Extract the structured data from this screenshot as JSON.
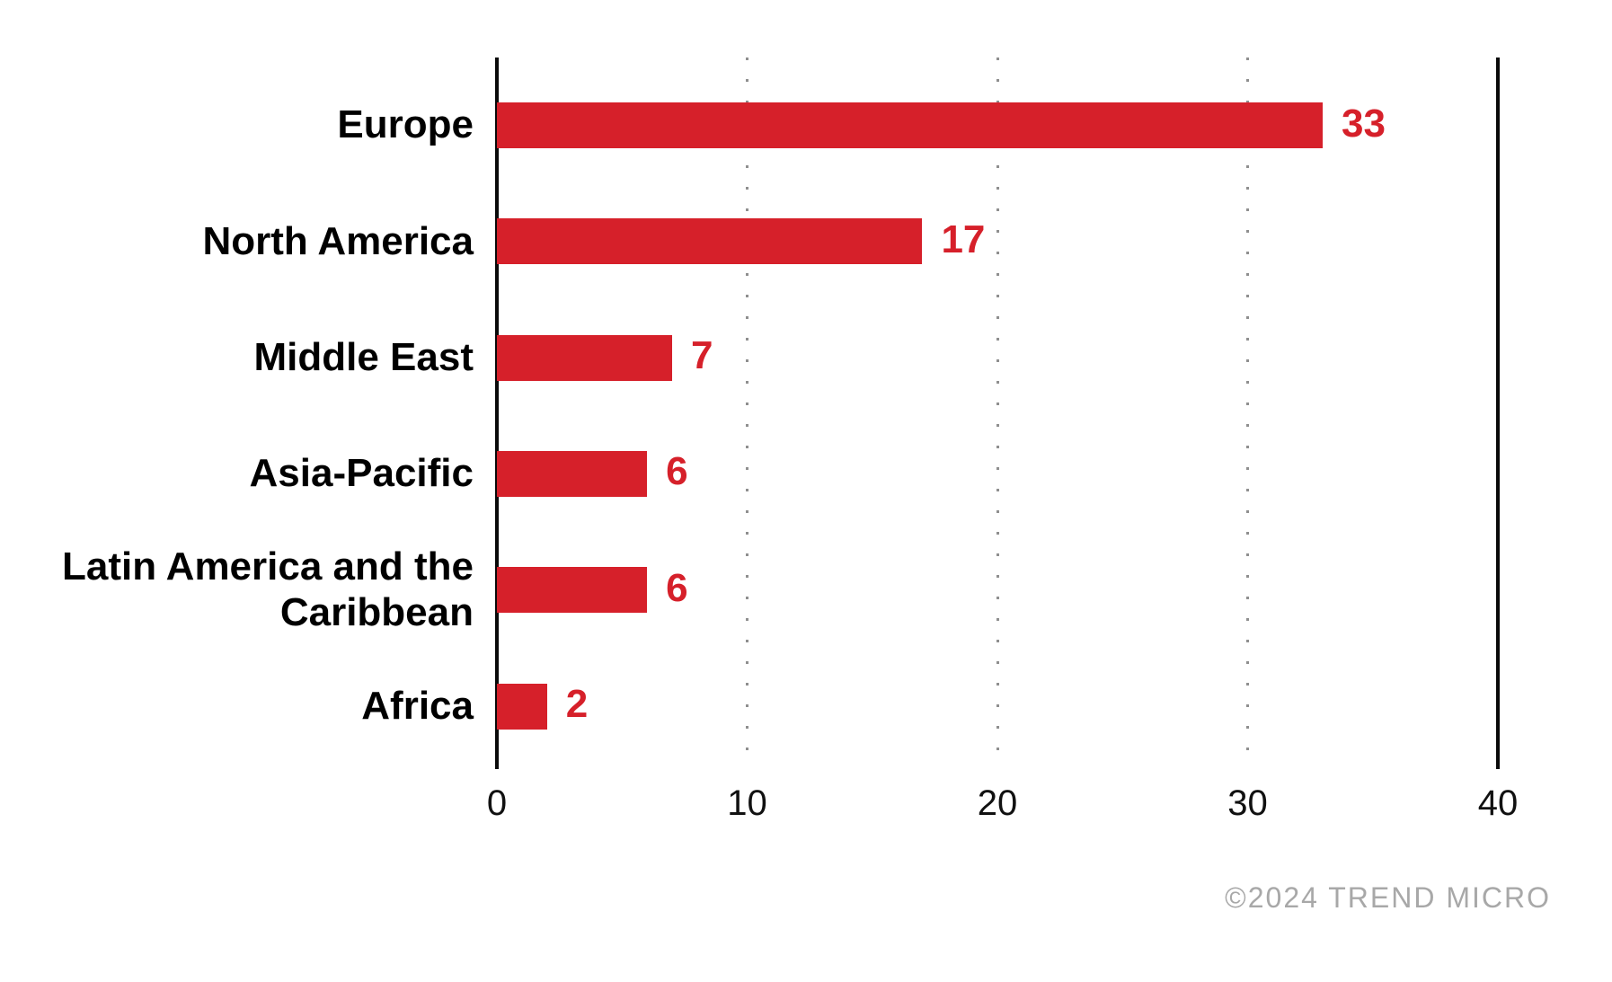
{
  "chart_data": {
    "type": "bar",
    "orientation": "horizontal",
    "title": "",
    "categories": [
      "Europe",
      "North America",
      "Middle East",
      "Asia-Pacific",
      "Latin America and the Caribbean",
      "Africa"
    ],
    "values": [
      33,
      17,
      7,
      6,
      6,
      2
    ],
    "xlim": [
      0,
      40
    ],
    "xticks": [
      "0",
      "10",
      "20",
      "30",
      "40"
    ],
    "xlabel": "",
    "ylabel": "",
    "legend": "none",
    "grid": "vertical dotted gridlines at 10, 20, 30; solid black axis line at 0 and solid black border line at 40",
    "value_labels_shown": true,
    "bar_color": "#d6202a",
    "value_label_color": "#d6202a",
    "category_label_color": "#000000",
    "gridline_color": "#8f8f8f"
  },
  "footer": {
    "copyright": "©2024 TREND MICRO",
    "color": "#a8a8a8"
  }
}
